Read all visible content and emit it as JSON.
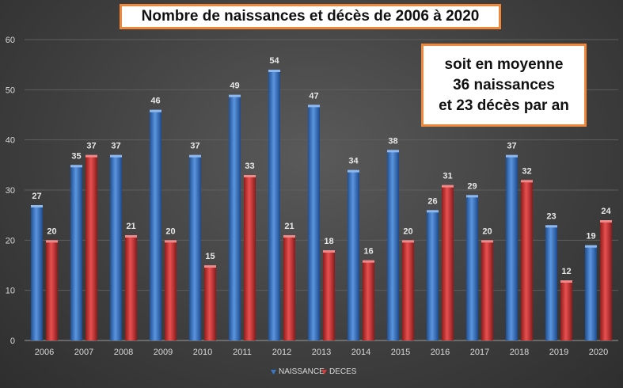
{
  "chart_data": {
    "type": "bar",
    "title": "Nombre de naissances et décès de 2006 à 2020",
    "categories": [
      "2006",
      "2007",
      "2008",
      "2009",
      "2010",
      "2011",
      "2012",
      "2013",
      "2014",
      "2015",
      "2016",
      "2017",
      "2018",
      "2019",
      "2020"
    ],
    "series": [
      {
        "name": "NAISSANCE",
        "color": "#3a78c8",
        "values": [
          27,
          35,
          37,
          46,
          37,
          49,
          54,
          47,
          34,
          38,
          26,
          29,
          37,
          23,
          19
        ]
      },
      {
        "name": "DECES",
        "color": "#d63a3a",
        "values": [
          20,
          37,
          21,
          20,
          15,
          33,
          21,
          18,
          16,
          20,
          31,
          20,
          32,
          12,
          24
        ]
      }
    ],
    "ylim": [
      0,
      60
    ],
    "yticks": [
      "0",
      "10",
      "20",
      "30",
      "40",
      "50",
      "60"
    ],
    "grid": true,
    "legend_position": "bottom-center",
    "annotation": {
      "lines": [
        "soit en moyenne",
        "36 naissances",
        "et 23 décès par an"
      ]
    }
  }
}
